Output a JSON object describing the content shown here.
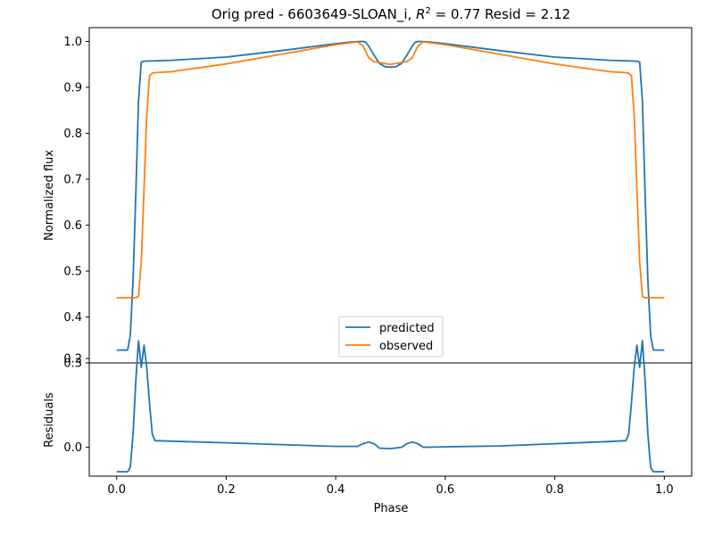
{
  "colors": {
    "predicted": "#1f77b4",
    "observed": "#ff7f0e"
  },
  "chart_data": [
    {
      "type": "line",
      "title_prefix": "Orig pred - 6603649-SLOAN_i, ",
      "title_r2": "R",
      "title_sup": "2",
      "title_suffix": " = 0.77 Resid = 2.12",
      "xlabel": "",
      "ylabel": "Normalized flux",
      "xlim": [
        -0.05,
        1.05
      ],
      "ylim": [
        0.3,
        1.03
      ],
      "yticks": [
        "0.3",
        "0.4",
        "0.5",
        "0.6",
        "0.7",
        "0.8",
        "0.9",
        "1.0"
      ],
      "legend": {
        "position": "lower center",
        "entries": [
          "predicted",
          "observed"
        ]
      },
      "series": [
        {
          "name": "predicted",
          "x": [
            0.0,
            0.02,
            0.025,
            0.03,
            0.035,
            0.04,
            0.045,
            0.05,
            0.1,
            0.2,
            0.3,
            0.4,
            0.43,
            0.445,
            0.45,
            0.455,
            0.46,
            0.47,
            0.48,
            0.49,
            0.5,
            0.51,
            0.52,
            0.53,
            0.54,
            0.545,
            0.55,
            0.555,
            0.57,
            0.6,
            0.7,
            0.8,
            0.9,
            0.95,
            0.955,
            0.96,
            0.965,
            0.97,
            0.975,
            0.98,
            1.0
          ],
          "y": [
            0.328,
            0.328,
            0.36,
            0.48,
            0.67,
            0.87,
            0.955,
            0.957,
            0.959,
            0.966,
            0.98,
            0.995,
            0.999,
            1.0,
            1.0,
            0.998,
            0.99,
            0.97,
            0.952,
            0.945,
            0.944,
            0.945,
            0.952,
            0.97,
            0.99,
            0.998,
            1.0,
            1.0,
            0.999,
            0.995,
            0.98,
            0.966,
            0.959,
            0.957,
            0.955,
            0.87,
            0.67,
            0.48,
            0.36,
            0.328,
            0.328
          ]
        },
        {
          "name": "observed",
          "x": [
            0.0,
            0.035,
            0.04,
            0.045,
            0.05,
            0.055,
            0.06,
            0.065,
            0.07,
            0.1,
            0.2,
            0.3,
            0.4,
            0.44,
            0.45,
            0.46,
            0.47,
            0.5,
            0.53,
            0.54,
            0.55,
            0.56,
            0.6,
            0.7,
            0.8,
            0.9,
            0.93,
            0.935,
            0.94,
            0.945,
            0.95,
            0.955,
            0.96,
            0.965,
            1.0
          ],
          "y": [
            0.442,
            0.442,
            0.445,
            0.52,
            0.68,
            0.84,
            0.925,
            0.931,
            0.932,
            0.934,
            0.951,
            0.972,
            0.993,
            0.999,
            0.99,
            0.965,
            0.956,
            0.95,
            0.956,
            0.965,
            0.99,
            0.999,
            0.993,
            0.972,
            0.951,
            0.934,
            0.932,
            0.931,
            0.925,
            0.84,
            0.68,
            0.52,
            0.445,
            0.442,
            0.442
          ]
        }
      ]
    },
    {
      "type": "line",
      "xlabel": "Phase",
      "ylabel": "Residuals",
      "xlim": [
        -0.05,
        1.05
      ],
      "ylim": [
        -0.065,
        0.19
      ],
      "xticks": [
        "0.0",
        "0.2",
        "0.4",
        "0.6",
        "0.8",
        "1.0"
      ],
      "yticks": [
        "0.0",
        "0.2"
      ],
      "series": [
        {
          "x": [
            0.0,
            0.02,
            0.025,
            0.03,
            0.035,
            0.04,
            0.045,
            0.05,
            0.055,
            0.06,
            0.065,
            0.07,
            0.2,
            0.3,
            0.4,
            0.44,
            0.45,
            0.46,
            0.47,
            0.48,
            0.5,
            0.52,
            0.53,
            0.54,
            0.55,
            0.56,
            0.6,
            0.7,
            0.8,
            0.9,
            0.93,
            0.935,
            0.94,
            0.945,
            0.95,
            0.955,
            0.96,
            0.965,
            0.97,
            0.975,
            0.98,
            1.0
          ],
          "y": [
            -0.055,
            -0.055,
            -0.045,
            0.03,
            0.15,
            0.24,
            0.18,
            0.23,
            0.18,
            0.1,
            0.03,
            0.015,
            0.01,
            0.006,
            0.002,
            0.002,
            0.008,
            0.012,
            0.008,
            -0.002,
            -0.003,
            0.0,
            0.008,
            0.012,
            0.008,
            0.0,
            0.001,
            0.003,
            0.008,
            0.013,
            0.015,
            0.03,
            0.1,
            0.18,
            0.23,
            0.18,
            0.24,
            0.15,
            0.03,
            -0.045,
            -0.055,
            -0.055
          ]
        }
      ]
    }
  ]
}
